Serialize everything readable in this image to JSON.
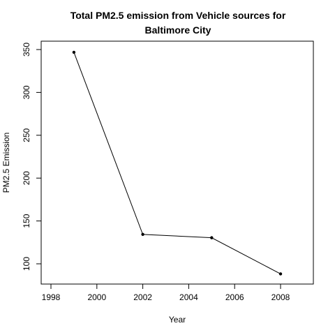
{
  "chart_data": {
    "type": "line",
    "title": [
      "Total PM2.5 emission from Vehicle sources for",
      "Baltimore City"
    ],
    "xlabel": "Year",
    "ylabel": "PM2.5  Emission",
    "x": [
      1999,
      2002,
      2005,
      2008
    ],
    "y": [
      346.82,
      134.31,
      130.43,
      88.28
    ],
    "xlim": [
      1998,
      2009
    ],
    "ylim": [
      90,
      350
    ],
    "xticks": [
      1998,
      2000,
      2002,
      2004,
      2006,
      2008
    ],
    "yticks": [
      100,
      150,
      200,
      250,
      300,
      350
    ],
    "line_color": "#000000",
    "grid": false,
    "legend": "none"
  }
}
